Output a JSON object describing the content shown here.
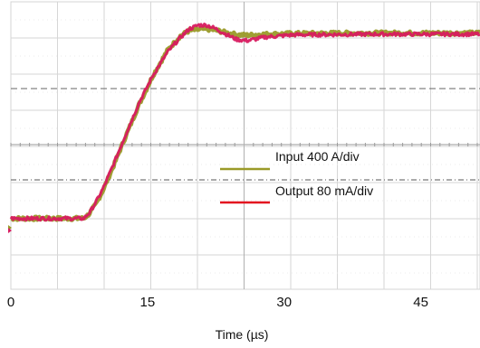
{
  "chart_data": {
    "type": "line",
    "title": "",
    "xlabel": "Time (µs)",
    "ylabel": "",
    "xlim": [
      0,
      51.5
    ],
    "ylim": [
      -4,
      4
    ],
    "x_ticks": [
      {
        "value": 0,
        "label": "0"
      },
      {
        "value": 15,
        "label": "15"
      },
      {
        "value": 30,
        "label": "30"
      },
      {
        "value": 45,
        "label": "45"
      }
    ],
    "grid": true,
    "legend_position": "center-right",
    "series": [
      {
        "name": "Input 400 A/div",
        "color": "#9a9a28",
        "x": [
          0,
          8.0,
          8.6,
          9.3,
          10.2,
          11.3,
          12.6,
          14.0,
          15.6,
          17.2,
          18.6,
          19.6,
          20.4,
          21.2,
          22.0,
          23.0,
          24.0,
          25.0,
          26.0,
          28.0,
          32.0,
          40.0,
          51.5
        ],
        "values": [
          -2.03,
          -2.03,
          -1.9,
          -1.65,
          -1.2,
          -0.55,
          0.25,
          1.1,
          1.95,
          2.65,
          3.05,
          3.2,
          3.22,
          3.24,
          3.23,
          3.18,
          3.12,
          3.08,
          3.07,
          3.1,
          3.12,
          3.13,
          3.13
        ]
      },
      {
        "name": "Output 80 mA/div",
        "color": "#d81b60",
        "x": [
          0,
          8.0,
          8.7,
          9.5,
          10.3,
          11.3,
          12.6,
          14.0,
          15.6,
          17.2,
          18.4,
          19.6,
          20.6,
          21.5,
          22.5,
          23.6,
          24.8,
          26.0,
          28.0,
          31.0,
          40.0,
          51.5
        ],
        "values": [
          -2.03,
          -2.03,
          -1.85,
          -1.5,
          -1.1,
          -0.5,
          0.3,
          1.15,
          1.95,
          2.6,
          2.95,
          3.25,
          3.35,
          3.35,
          3.25,
          3.1,
          2.95,
          2.92,
          3.02,
          3.08,
          3.1,
          3.1
        ]
      }
    ]
  }
}
